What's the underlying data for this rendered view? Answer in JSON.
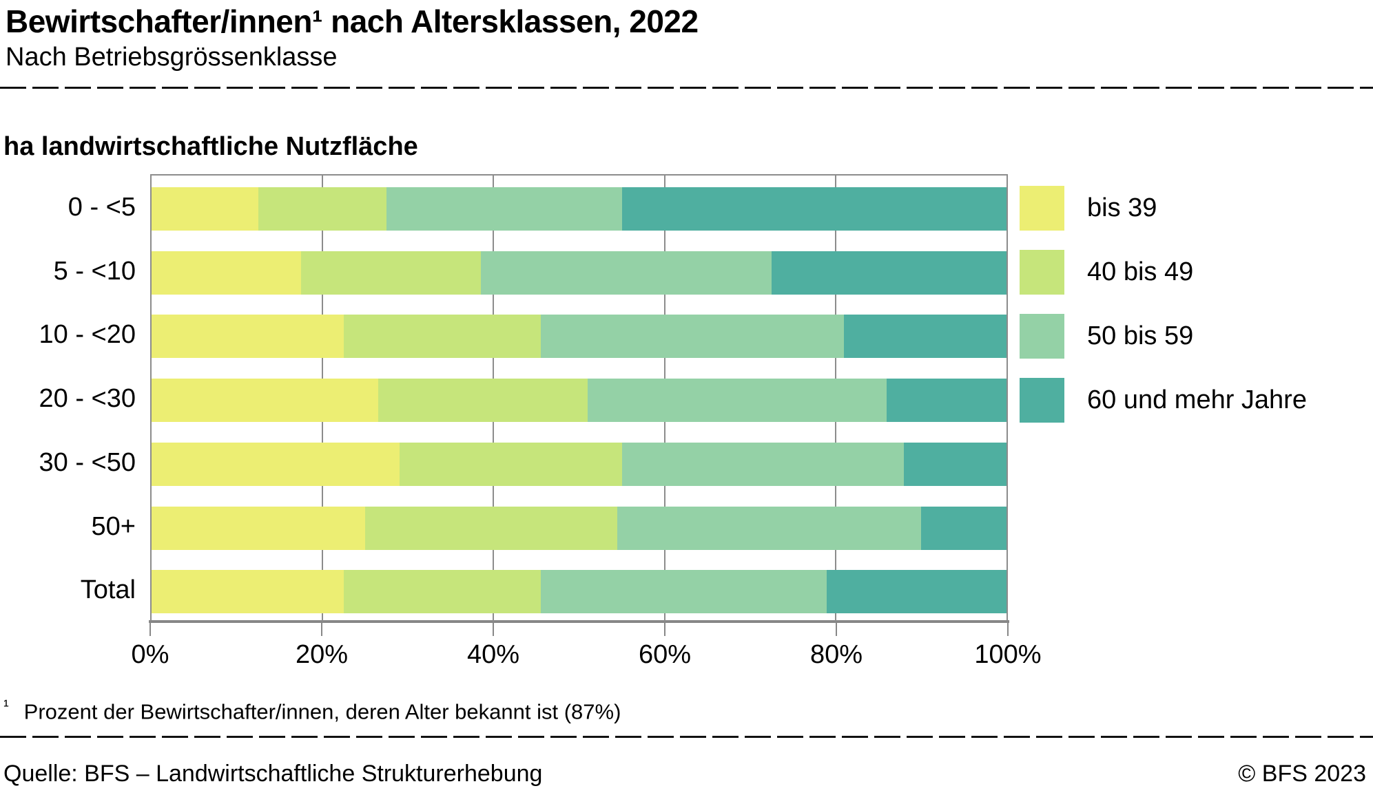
{
  "header": {
    "title": "Bewirtschafter/innen¹ nach Altersklassen, 2022",
    "subtitle": "Nach Betriebsgrössenklasse"
  },
  "chart_data": {
    "type": "bar",
    "orientation": "horizontal",
    "stacked": true,
    "unit": "percent",
    "axis_label": "ha landwirtschaftliche Nutzfläche",
    "categories": [
      "0 - <5",
      "5 - <10",
      "10 - <20",
      "20 - <30",
      "30 - <50",
      "50+",
      "Total"
    ],
    "series": [
      {
        "name": "bis 39",
        "color": "#ECEE73",
        "values": [
          12.5,
          17.5,
          22.5,
          26.5,
          29.0,
          25.0,
          22.5
        ]
      },
      {
        "name": "40 bis 49",
        "color": "#C6E57B",
        "values": [
          15.0,
          21.0,
          23.0,
          24.5,
          26.0,
          29.5,
          23.0
        ]
      },
      {
        "name": "50 bis 59",
        "color": "#94D1A6",
        "values": [
          27.5,
          34.0,
          35.5,
          35.0,
          33.0,
          35.5,
          33.5
        ]
      },
      {
        "name": "60 und mehr Jahre",
        "color": "#4FAFA0",
        "values": [
          45.0,
          27.5,
          19.0,
          14.0,
          12.0,
          10.0,
          21.0
        ]
      }
    ],
    "x_ticks": [
      "0%",
      "20%",
      "40%",
      "60%",
      "80%",
      "100%"
    ],
    "xlim": [
      0,
      100
    ],
    "grid": "vertical-at-20-40-60-80",
    "legend_position": "right",
    "colors": {
      "gridline": "#8c8c8c",
      "axis": "#878787",
      "text": "#000000"
    }
  },
  "footnote": {
    "marker": "¹",
    "text": "Prozent der Bewirtschafter/innen, deren Alter bekannt ist (87%)"
  },
  "footer": {
    "source": "Quelle: BFS – Landwirtschaftliche Strukturerhebung",
    "copyright": "© BFS 2023"
  }
}
